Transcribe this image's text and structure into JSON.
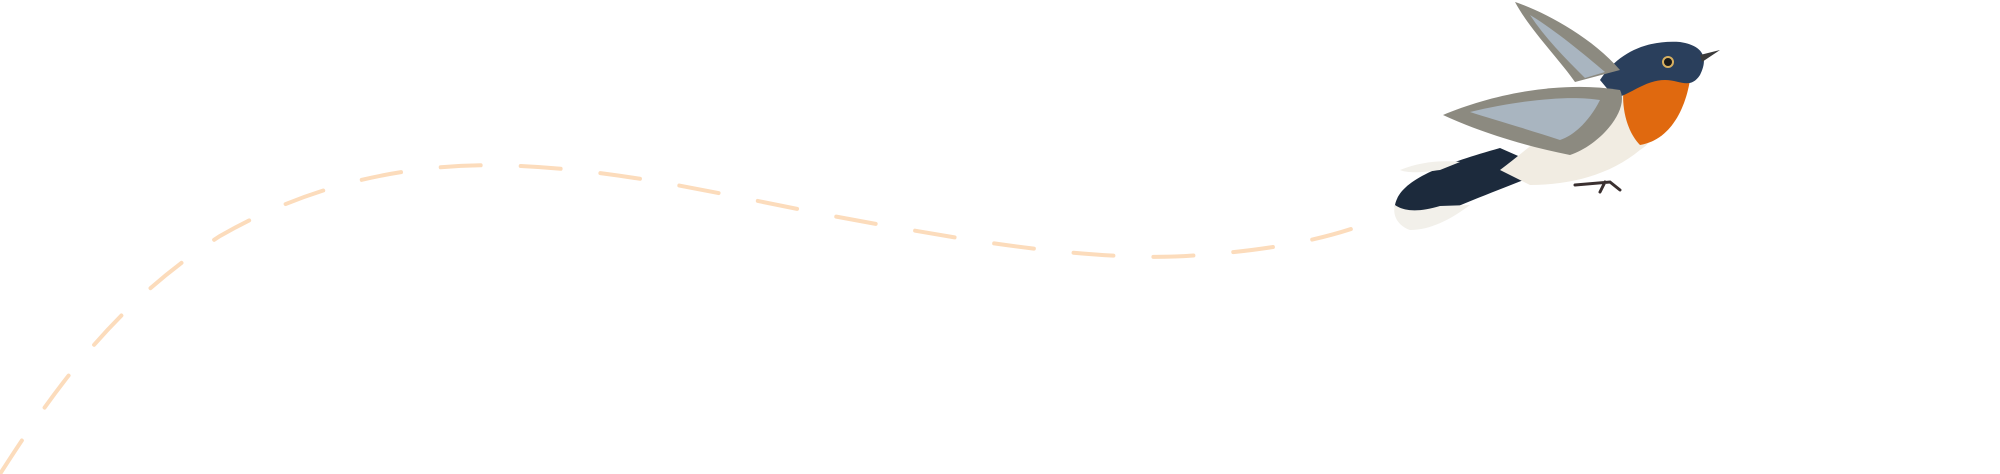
{
  "illustration": {
    "subject": "bird-in-flight",
    "colors": {
      "flight_path": "#fcdcbc",
      "head_back": "#2a3f5c",
      "throat": "#e0690f",
      "belly": "#f1ece2",
      "wing": "#8c8a80",
      "wing_light": "#a9b5c0",
      "tail": "#1c2a3c",
      "tail_tip": "#f2f0ea",
      "beak": "#3a3a3a"
    }
  }
}
